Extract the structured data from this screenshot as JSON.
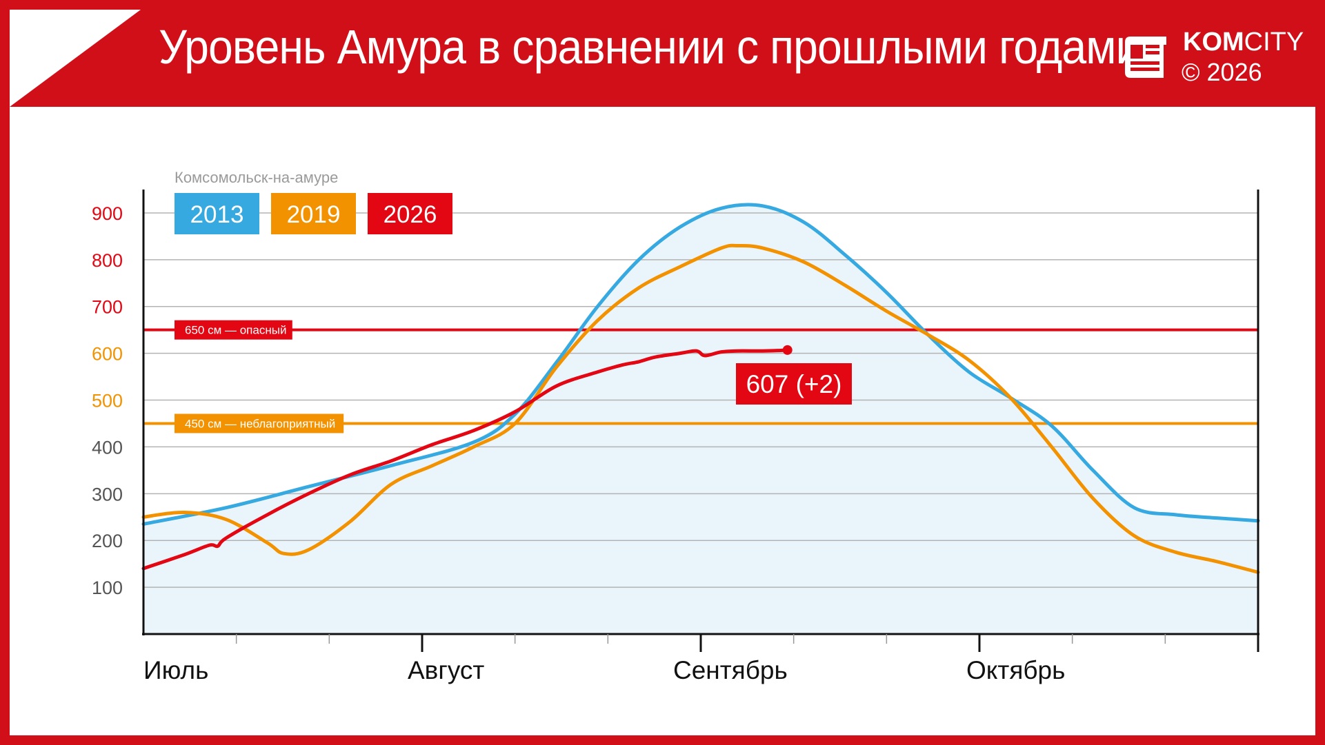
{
  "header": {
    "title": "Уровень Амура в сравнении с прошлыми годами",
    "brand_bold": "KOM",
    "brand_rest": "CITY",
    "copyright": "© 2026",
    "logo_icon": "newspaper-icon"
  },
  "colors": {
    "brand_red": "#d10f19",
    "s2013": "#36a9e1",
    "s2019": "#f39200",
    "s2026": "#e30613",
    "area_fill": "#eaf5fb",
    "grid": "#b3b3b3"
  },
  "chart_data": {
    "type": "line",
    "subtitle": "Комсомольск-на-амуре",
    "xlabel": "",
    "ylabel": "",
    "ylim": [
      0,
      950
    ],
    "y_ticks": [
      {
        "value": 100,
        "label": "100",
        "color": "#555555"
      },
      {
        "value": 200,
        "label": "200",
        "color": "#555555"
      },
      {
        "value": 300,
        "label": "300",
        "color": "#555555"
      },
      {
        "value": 400,
        "label": "400",
        "color": "#555555"
      },
      {
        "value": 500,
        "label": "500",
        "color": "#f39200"
      },
      {
        "value": 600,
        "label": "600",
        "color": "#f39200"
      },
      {
        "value": 700,
        "label": "700",
        "color": "#e30613"
      },
      {
        "value": 800,
        "label": "800",
        "color": "#e30613"
      },
      {
        "value": 900,
        "label": "900",
        "color": "#e30613"
      }
    ],
    "months": [
      "Июль",
      "Август",
      "Сентябрь",
      "Октябрь"
    ],
    "thresholds": [
      {
        "value": 650,
        "label": "650 см — опасный",
        "color": "#e30613"
      },
      {
        "value": 450,
        "label": "450 см — неблагоприятный",
        "color": "#f39200"
      }
    ],
    "series": [
      {
        "name": "2013",
        "color": "#36a9e1",
        "points": [
          [
            0,
            235
          ],
          [
            10,
            270
          ],
          [
            20,
            315
          ],
          [
            30,
            360
          ],
          [
            40,
            410
          ],
          [
            45,
            470
          ],
          [
            50,
            580
          ],
          [
            55,
            700
          ],
          [
            60,
            800
          ],
          [
            65,
            870
          ],
          [
            70,
            910
          ],
          [
            75,
            915
          ],
          [
            80,
            880
          ],
          [
            85,
            810
          ],
          [
            90,
            730
          ],
          [
            95,
            640
          ],
          [
            100,
            560
          ],
          [
            105,
            505
          ],
          [
            110,
            445
          ],
          [
            115,
            350
          ],
          [
            120,
            270
          ],
          [
            125,
            255
          ],
          [
            130,
            248
          ],
          [
            135,
            242
          ]
        ]
      },
      {
        "name": "2019",
        "color": "#f39200",
        "points": [
          [
            0,
            250
          ],
          [
            5,
            260
          ],
          [
            10,
            245
          ],
          [
            15,
            195
          ],
          [
            17,
            172
          ],
          [
            20,
            180
          ],
          [
            25,
            240
          ],
          [
            30,
            320
          ],
          [
            35,
            360
          ],
          [
            40,
            400
          ],
          [
            45,
            450
          ],
          [
            50,
            570
          ],
          [
            55,
            670
          ],
          [
            60,
            740
          ],
          [
            65,
            785
          ],
          [
            70,
            825
          ],
          [
            72,
            830
          ],
          [
            75,
            825
          ],
          [
            80,
            795
          ],
          [
            85,
            745
          ],
          [
            90,
            690
          ],
          [
            95,
            640
          ],
          [
            100,
            585
          ],
          [
            105,
            505
          ],
          [
            110,
            400
          ],
          [
            115,
            290
          ],
          [
            120,
            210
          ],
          [
            125,
            175
          ],
          [
            130,
            155
          ],
          [
            135,
            132
          ]
        ]
      },
      {
        "name": "2026",
        "color": "#e30613",
        "points": [
          [
            0,
            140
          ],
          [
            5,
            170
          ],
          [
            8,
            190
          ],
          [
            9,
            188
          ],
          [
            10,
            205
          ],
          [
            15,
            255
          ],
          [
            20,
            300
          ],
          [
            25,
            340
          ],
          [
            30,
            370
          ],
          [
            35,
            405
          ],
          [
            40,
            435
          ],
          [
            45,
            475
          ],
          [
            50,
            530
          ],
          [
            55,
            560
          ],
          [
            58,
            575
          ],
          [
            60,
            582
          ],
          [
            62,
            592
          ],
          [
            65,
            600
          ],
          [
            67,
            605
          ],
          [
            68,
            595
          ],
          [
            70,
            603
          ],
          [
            72,
            605
          ],
          [
            75,
            605
          ],
          [
            77,
            606
          ],
          [
            78,
            607
          ]
        ]
      }
    ],
    "callout": {
      "label": "607 (+2)",
      "x": 78,
      "y": 607
    }
  }
}
